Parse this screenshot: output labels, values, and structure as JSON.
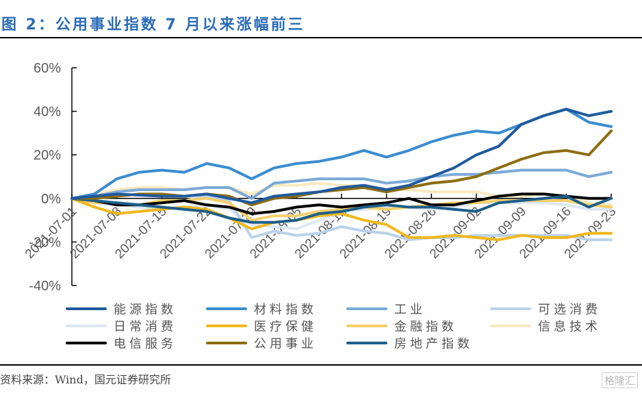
{
  "title": "图 2：公用事业指数 7 月以来涨幅前三",
  "source": "资料来源：Wind，国元证券研究所",
  "watermark": "格隆汇",
  "chart_data": {
    "type": "line",
    "title": "公用事业指数 7 月以来涨幅前三",
    "xlabel": "",
    "ylabel": "",
    "ylim": [
      -0.4,
      0.6
    ],
    "yticks": [
      -0.4,
      -0.2,
      0,
      0.2,
      0.4,
      0.6
    ],
    "ytick_labels": [
      "-40%",
      "-20%",
      "0%",
      "20%",
      "40%",
      "60%"
    ],
    "xtick_labels": [
      "2021-07-01",
      "2021-07-08",
      "2021-07-15",
      "2021-07-22",
      "2021-07-29",
      "2021-08-05",
      "2021-08-12",
      "2021-08-19",
      "2021-08-26",
      "2021-09-02",
      "2021-09-09",
      "2021-09-16",
      "2021-09-23"
    ],
    "grid": false,
    "legend_position": "bottom",
    "x": [
      0,
      0.5,
      1,
      1.5,
      2,
      2.5,
      3,
      3.5,
      4,
      4.5,
      5,
      5.5,
      6,
      6.5,
      7,
      7.5,
      8,
      8.5,
      9,
      9.5,
      10,
      10.5,
      11,
      11.5,
      12
    ],
    "series": [
      {
        "name": "能源指数",
        "color": "#1f5a9e",
        "values": [
          0,
          0.01,
          0.02,
          0.015,
          0.01,
          0.01,
          0.02,
          0,
          -0.02,
          0.01,
          0.02,
          0.03,
          0.05,
          0.06,
          0.04,
          0.06,
          0.1,
          0.14,
          0.2,
          0.24,
          0.34,
          0.38,
          0.41,
          0.38,
          0.4
        ]
      },
      {
        "name": "材料指数",
        "color": "#3a8ccf",
        "values": [
          0,
          0.02,
          0.09,
          0.12,
          0.13,
          0.12,
          0.16,
          0.14,
          0.09,
          0.14,
          0.16,
          0.17,
          0.19,
          0.22,
          0.19,
          0.22,
          0.26,
          0.29,
          0.31,
          0.3,
          0.34,
          0.38,
          0.41,
          0.35,
          0.33
        ]
      },
      {
        "name": "工业",
        "color": "#7aa9d6",
        "values": [
          0,
          0.01,
          0.03,
          0.04,
          0.04,
          0.04,
          0.05,
          0.05,
          0,
          0.07,
          0.08,
          0.09,
          0.09,
          0.09,
          0.07,
          0.08,
          0.1,
          0.11,
          0.11,
          0.12,
          0.13,
          0.13,
          0.13,
          0.1,
          0.12
        ]
      },
      {
        "name": "可选消费",
        "color": "#b9d2ea",
        "values": [
          0,
          -0.02,
          -0.02,
          -0.03,
          -0.02,
          -0.01,
          0.01,
          -0.01,
          -0.18,
          -0.15,
          -0.17,
          -0.16,
          -0.13,
          -0.15,
          -0.16,
          -0.19,
          -0.18,
          -0.18,
          -0.17,
          -0.17,
          -0.17,
          -0.17,
          -0.17,
          -0.19,
          -0.19
        ]
      },
      {
        "name": "日常消费",
        "color": "#dce8f3",
        "values": [
          0,
          -0.02,
          -0.03,
          -0.04,
          -0.05,
          -0.04,
          -0.03,
          -0.05,
          -0.12,
          -0.13,
          -0.14,
          -0.1,
          -0.06,
          -0.05,
          -0.04,
          -0.04,
          -0.05,
          -0.04,
          -0.02,
          -0.02,
          -0.02,
          -0.02,
          -0.03,
          -0.05,
          -0.05
        ]
      },
      {
        "name": "医疗保健",
        "color": "#f0b81e",
        "values": [
          0,
          -0.04,
          -0.07,
          -0.06,
          -0.05,
          -0.04,
          -0.05,
          -0.09,
          -0.14,
          -0.11,
          -0.1,
          -0.08,
          -0.07,
          -0.1,
          -0.12,
          -0.18,
          -0.18,
          -0.17,
          -0.18,
          -0.19,
          -0.17,
          -0.18,
          -0.18,
          -0.16,
          -0.16
        ]
      },
      {
        "name": "金融指数",
        "color": "#f5cf6a",
        "values": [
          0,
          -0.02,
          -0.02,
          -0.03,
          -0.01,
          -0.01,
          0,
          -0.02,
          -0.1,
          -0.08,
          -0.08,
          -0.06,
          -0.05,
          -0.04,
          -0.05,
          -0.04,
          -0.03,
          -0.02,
          -0.02,
          -0.01,
          -0.01,
          -0.01,
          -0.01,
          -0.03,
          -0.04
        ]
      },
      {
        "name": "信息技术",
        "color": "#f8e9c0",
        "values": [
          0,
          0.02,
          0.04,
          0.05,
          0.05,
          0.04,
          0.05,
          0.05,
          0.02,
          0.06,
          0.06,
          0.07,
          0.06,
          0.06,
          0.04,
          0.04,
          0.03,
          0.03,
          0.03,
          0.01,
          0.01,
          0.02,
          0.01,
          -0.02,
          -0.03
        ]
      },
      {
        "name": "电信服务",
        "color": "#000000",
        "values": [
          0,
          -0.01,
          -0.03,
          -0.03,
          -0.02,
          -0.01,
          -0.03,
          -0.04,
          -0.07,
          -0.06,
          -0.04,
          -0.03,
          -0.04,
          -0.03,
          -0.02,
          0,
          -0.03,
          -0.03,
          -0.01,
          0.01,
          0.02,
          0.02,
          0.01,
          0,
          0
        ]
      },
      {
        "name": "公用事业",
        "color": "#8c6d10",
        "values": [
          0,
          0,
          0.01,
          0.02,
          0.02,
          0.01,
          0.02,
          0.01,
          -0.03,
          0,
          0.01,
          0.03,
          0.04,
          0.05,
          0.03,
          0.05,
          0.07,
          0.08,
          0.1,
          0.14,
          0.18,
          0.21,
          0.22,
          0.2,
          0.31
        ]
      },
      {
        "name": "房地产指数",
        "color": "#1d5e8a",
        "values": [
          0,
          -0.01,
          -0.02,
          -0.03,
          -0.04,
          -0.05,
          -0.06,
          -0.09,
          -0.11,
          -0.11,
          -0.1,
          -0.07,
          -0.06,
          -0.04,
          -0.03,
          -0.04,
          -0.04,
          -0.05,
          -0.06,
          -0.02,
          -0.01,
          0,
          0.01,
          -0.04,
          0
        ]
      }
    ]
  }
}
